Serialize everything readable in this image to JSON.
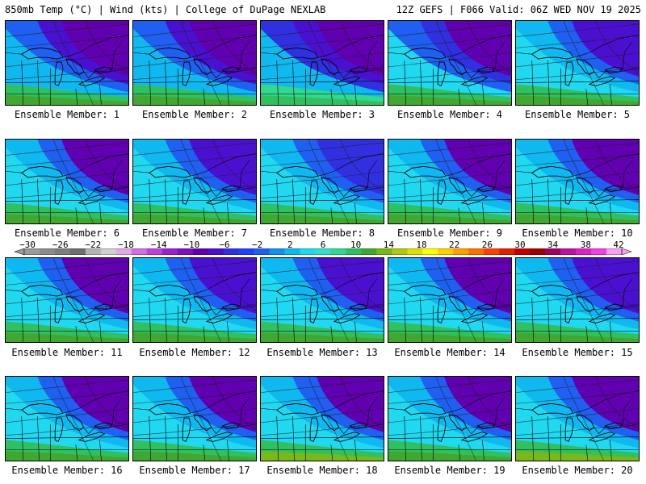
{
  "header": {
    "title_left": "850mb Temp (°C) | Wind (kts) | College of DuPage NEXLAB",
    "title_right": "12Z GEFS | F066 Valid: 06Z WED NOV 19 2025"
  },
  "colorbar": {
    "labels": [
      "−30",
      "−26",
      "−22",
      "−18",
      "−14",
      "−10",
      "−6",
      "−2",
      "2",
      "6",
      "10",
      "14",
      "18",
      "22",
      "26",
      "30",
      "34",
      "38",
      "42"
    ],
    "colors": [
      "#9a9a9a",
      "#8c8c8c",
      "#7d7d7d",
      "#6e6e6e",
      "#b4b4b4",
      "#d0d0d0",
      "#e2a8e8",
      "#d070e0",
      "#c040d8",
      "#a020d0",
      "#8010c0",
      "#6000b0",
      "#4a10d0",
      "#3030e0",
      "#2040ff",
      "#2060f0",
      "#1090f0",
      "#10b8f0",
      "#20d8f0",
      "#30e0c8",
      "#30d890",
      "#30c060",
      "#40a830",
      "#78b818",
      "#b0c810",
      "#e0e000",
      "#ffff00",
      "#ffd000",
      "#ffa000",
      "#ff7000",
      "#ff4000",
      "#e02000",
      "#c00000",
      "#a00000",
      "#a00060",
      "#c010a0",
      "#e020c0",
      "#f040e0",
      "#f8a0f8"
    ]
  },
  "panels": [
    {
      "label": "Ensemble Member: 1",
      "palette": [
        "#10b8f0",
        "#2060f0",
        "#4a10d0",
        "#6000b0",
        "#30c060",
        "#40a830"
      ]
    },
    {
      "label": "Ensemble Member: 2",
      "palette": [
        "#10b8f0",
        "#2060f0",
        "#4a10d0",
        "#6000b0",
        "#30c060",
        "#40a830"
      ]
    },
    {
      "label": "Ensemble Member: 3",
      "palette": [
        "#10b8f0",
        "#3030e0",
        "#4a10d0",
        "#6000b0",
        "#30d890",
        "#30c060"
      ]
    },
    {
      "label": "Ensemble Member: 4",
      "palette": [
        "#20d8f0",
        "#2060f0",
        "#3030e0",
        "#6000b0",
        "#30c060",
        "#40a830"
      ]
    },
    {
      "label": "Ensemble Member: 5",
      "palette": [
        "#20d8f0",
        "#10b8f0",
        "#2060f0",
        "#4a10d0",
        "#30c060",
        "#40a830"
      ]
    },
    {
      "label": "Ensemble Member: 6",
      "palette": [
        "#20d8f0",
        "#10b8f0",
        "#2060f0",
        "#6000b0",
        "#30c060",
        "#40a830"
      ]
    },
    {
      "label": "Ensemble Member: 7",
      "palette": [
        "#20d8f0",
        "#10b8f0",
        "#2060f0",
        "#4a10d0",
        "#30c060",
        "#40a830"
      ]
    },
    {
      "label": "Ensemble Member: 8",
      "palette": [
        "#20d8f0",
        "#10b8f0",
        "#2060f0",
        "#3030e0",
        "#30c060",
        "#40a830"
      ]
    },
    {
      "label": "Ensemble Member: 9",
      "palette": [
        "#20d8f0",
        "#10b8f0",
        "#2060f0",
        "#6000b0",
        "#30c060",
        "#40a830"
      ]
    },
    {
      "label": "Ensemble Member: 10",
      "palette": [
        "#20d8f0",
        "#10b8f0",
        "#2060f0",
        "#6000b0",
        "#30c060",
        "#40a830"
      ]
    },
    {
      "label": "Ensemble Member: 11",
      "palette": [
        "#20d8f0",
        "#10b8f0",
        "#2060f0",
        "#6000b0",
        "#30c060",
        "#40a830"
      ]
    },
    {
      "label": "Ensemble Member: 12",
      "palette": [
        "#20d8f0",
        "#10b8f0",
        "#2060f0",
        "#4a10d0",
        "#30c060",
        "#40a830"
      ]
    },
    {
      "label": "Ensemble Member: 13",
      "palette": [
        "#20d8f0",
        "#10b8f0",
        "#2060f0",
        "#4a10d0",
        "#30c060",
        "#40a830"
      ]
    },
    {
      "label": "Ensemble Member: 14",
      "palette": [
        "#20d8f0",
        "#10b8f0",
        "#2060f0",
        "#6000b0",
        "#30c060",
        "#40a830"
      ]
    },
    {
      "label": "Ensemble Member: 15",
      "palette": [
        "#20d8f0",
        "#10b8f0",
        "#2060f0",
        "#4a10d0",
        "#30c060",
        "#40a830"
      ]
    },
    {
      "label": "Ensemble Member: 16",
      "palette": [
        "#20d8f0",
        "#10b8f0",
        "#2060f0",
        "#6000b0",
        "#30c060",
        "#40a830"
      ]
    },
    {
      "label": "Ensemble Member: 17",
      "palette": [
        "#20d8f0",
        "#10b8f0",
        "#2060f0",
        "#6000b0",
        "#30c060",
        "#40a830"
      ]
    },
    {
      "label": "Ensemble Member: 18",
      "palette": [
        "#20d8f0",
        "#10b8f0",
        "#2060f0",
        "#6000b0",
        "#30c060",
        "#78b818"
      ]
    },
    {
      "label": "Ensemble Member: 19",
      "palette": [
        "#20d8f0",
        "#10b8f0",
        "#2060f0",
        "#6000b0",
        "#30c060",
        "#40a830"
      ]
    },
    {
      "label": "Ensemble Member: 20",
      "palette": [
        "#20d8f0",
        "#10b8f0",
        "#2060f0",
        "#6000b0",
        "#30c060",
        "#78b818"
      ]
    }
  ]
}
